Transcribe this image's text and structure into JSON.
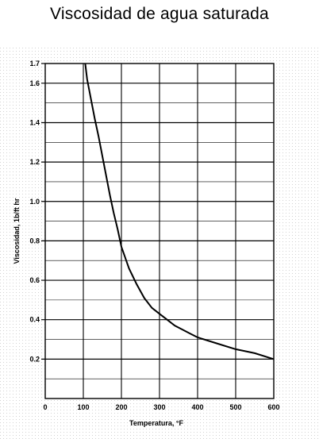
{
  "chart_data": {
    "type": "line",
    "title": "Viscosidad de agua saturada",
    "xlabel": "Temperatura, °F",
    "ylabel": "Viscosidad, 1b/ft hr",
    "xlim": [
      0,
      600
    ],
    "ylim": [
      0,
      1.7
    ],
    "x_ticks": [
      0,
      100,
      200,
      300,
      400,
      500,
      600
    ],
    "x_tick_labels": [
      "0",
      "100",
      "200",
      "300",
      "400",
      "500",
      "600"
    ],
    "y_ticks": [
      0.2,
      0.4,
      0.6,
      0.8,
      1.0,
      1.2,
      1.4,
      1.6,
      1.7
    ],
    "y_tick_labels": [
      "0.2",
      "0.4",
      "0.6",
      "0.8",
      "1.0",
      "1.2",
      "1.4",
      "1.6",
      "1.7"
    ],
    "grid": true,
    "series": [
      {
        "x": [
          105,
          110,
          120,
          130,
          140,
          150,
          160,
          170,
          180,
          190,
          200,
          220,
          240,
          260,
          280,
          300,
          320,
          340,
          360,
          380,
          400,
          450,
          500,
          550,
          600
        ],
        "y": [
          1.7,
          1.62,
          1.52,
          1.42,
          1.33,
          1.23,
          1.13,
          1.03,
          0.94,
          0.86,
          0.77,
          0.66,
          0.58,
          0.51,
          0.46,
          0.43,
          0.4,
          0.37,
          0.35,
          0.33,
          0.31,
          0.28,
          0.25,
          0.23,
          0.2
        ]
      }
    ]
  }
}
